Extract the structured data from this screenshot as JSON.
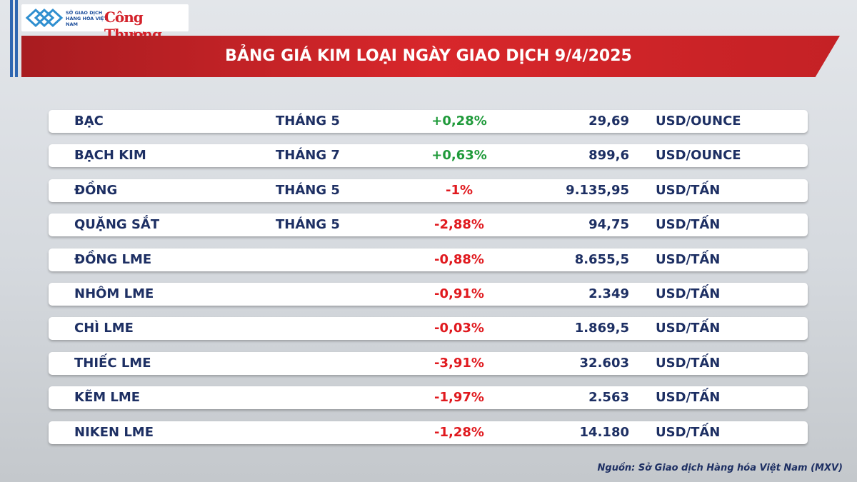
{
  "header": {
    "logo_left": "SỞ GIAO DỊCH HÀNG HÓA VIỆT NAM",
    "logo_right": "Công Thương",
    "title": "BẢNG GIÁ KIM LOẠI NGÀY GIAO DỊCH 9/4/2025"
  },
  "table": {
    "rows": [
      {
        "name": "BẠC",
        "month": "THÁNG 5",
        "change": "+0,28%",
        "change_color": "#1f9a3a",
        "price": "29,69",
        "unit": "USD/OUNCE"
      },
      {
        "name": "BẠCH KIM",
        "month": "THÁNG 7",
        "change": "+0,63%",
        "change_color": "#1f9a3a",
        "price": "899,6",
        "unit": "USD/OUNCE"
      },
      {
        "name": "ĐỒNG",
        "month": "THÁNG 5",
        "change": "-1%",
        "change_color": "#e0191e",
        "price": "9.135,95",
        "unit": "USD/TẤN"
      },
      {
        "name": "QUẶNG SẮT",
        "month": "THÁNG 5",
        "change": "-2,88%",
        "change_color": "#e0191e",
        "price": "94,75",
        "unit": "USD/TẤN"
      },
      {
        "name": "ĐỒNG LME",
        "change": "-0,88%",
        "change_color": "#e0191e",
        "price": "8.655,5",
        "unit": "USD/TẤN"
      },
      {
        "name": "NHÔM LME",
        "change": "-0,91%",
        "change_color": "#e0191e",
        "price": "2.349",
        "unit": "USD/TẤN"
      },
      {
        "name": "CHÌ LME",
        "change": "-0,03%",
        "change_color": "#e0191e",
        "price": "1.869,5",
        "unit": "USD/TẤN"
      },
      {
        "name": "THIẾC LME",
        "change": "-3,91%",
        "change_color": "#e0191e",
        "price": "32.603",
        "unit": "USD/TẤN"
      },
      {
        "name": "KẼM LME",
        "change": "-1,97%",
        "change_color": "#e0191e",
        "price": "2.563",
        "unit": "USD/TẤN"
      },
      {
        "name": "NIKEN LME",
        "change": "-1,28%",
        "change_color": "#e0191e",
        "price": "14.180",
        "unit": "USD/TẤN"
      }
    ]
  },
  "footer": {
    "source": "Nguồn: Sở Giao dịch Hàng hóa Việt Nam (MXV)"
  }
}
